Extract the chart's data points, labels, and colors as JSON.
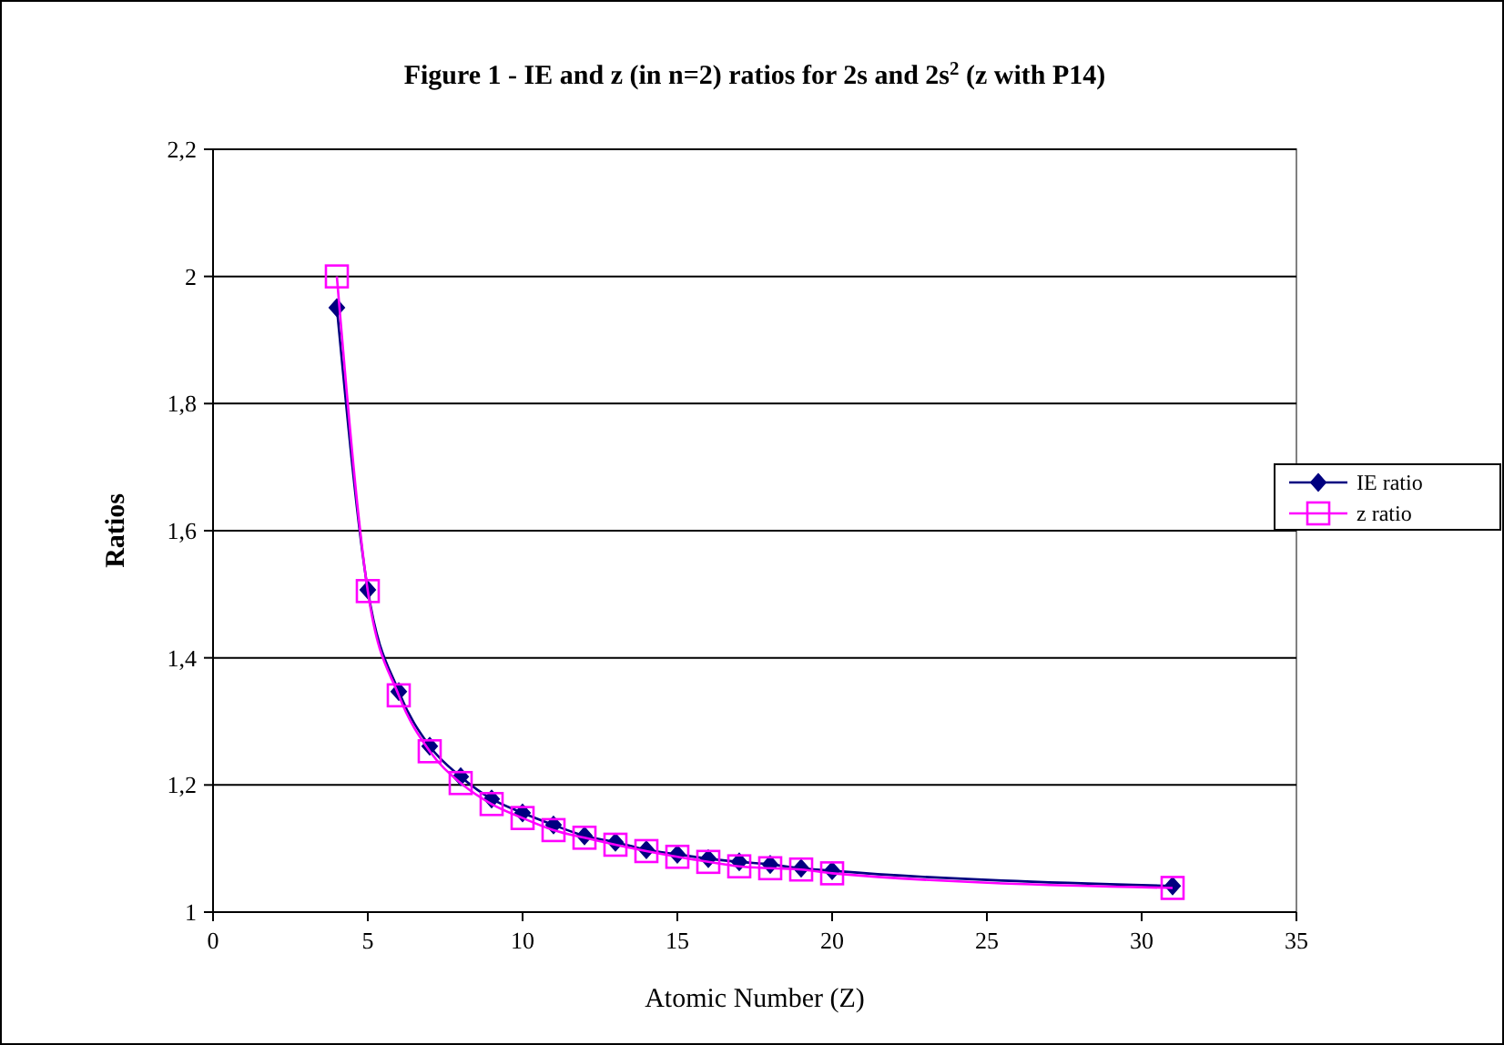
{
  "chart_data": {
    "type": "line",
    "title": "Figure 1 - IE and z (in n=2) ratios for 2s and 2s$^{2}$ (z with P14)",
    "xlabel": "Atomic Number (Z)",
    "ylabel": "Ratios",
    "x": [
      4,
      5,
      6,
      7,
      8,
      9,
      10,
      11,
      12,
      13,
      14,
      15,
      16,
      17,
      18,
      19,
      20,
      31
    ],
    "series": [
      {
        "name": "IE ratio",
        "color": "#000080",
        "marker": "diamond",
        "values": [
          1.951,
          1.507,
          1.347,
          1.261,
          1.213,
          1.178,
          1.156,
          1.137,
          1.12,
          1.11,
          1.098,
          1.091,
          1.084,
          1.079,
          1.075,
          1.069,
          1.065,
          1.041
        ]
      },
      {
        "name": "z ratio",
        "color": "#ff00ff",
        "marker": "square",
        "values": [
          2.0,
          1.505,
          1.341,
          1.253,
          1.203,
          1.17,
          1.148,
          1.129,
          1.117,
          1.106,
          1.096,
          1.087,
          1.079,
          1.072,
          1.069,
          1.067,
          1.061,
          1.038
        ]
      }
    ],
    "xlim": [
      0,
      35
    ],
    "xticks": [
      0,
      5,
      10,
      15,
      20,
      25,
      30,
      35
    ],
    "ylim": [
      1,
      2.2
    ],
    "yticks": [
      {
        "value": 1,
        "label": "1"
      },
      {
        "value": 1.2,
        "label": "1,2"
      },
      {
        "value": 1.4,
        "label": "1,4"
      },
      {
        "value": 1.6,
        "label": "1,6"
      },
      {
        "value": 1.8,
        "label": "1,8"
      },
      {
        "value": 2,
        "label": "2"
      },
      {
        "value": 2.2,
        "label": "2,2"
      }
    ],
    "grid": "y",
    "legend": "right",
    "line_style": "solid"
  }
}
